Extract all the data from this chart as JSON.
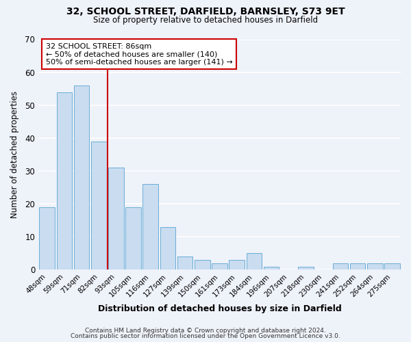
{
  "title": "32, SCHOOL STREET, DARFIELD, BARNSLEY, S73 9ET",
  "subtitle": "Size of property relative to detached houses in Darfield",
  "xlabel": "Distribution of detached houses by size in Darfield",
  "ylabel": "Number of detached properties",
  "bar_labels": [
    "48sqm",
    "59sqm",
    "71sqm",
    "82sqm",
    "93sqm",
    "105sqm",
    "116sqm",
    "127sqm",
    "139sqm",
    "150sqm",
    "161sqm",
    "173sqm",
    "184sqm",
    "196sqm",
    "207sqm",
    "218sqm",
    "230sqm",
    "241sqm",
    "252sqm",
    "264sqm",
    "275sqm"
  ],
  "bar_values": [
    19,
    54,
    56,
    39,
    31,
    19,
    26,
    13,
    4,
    3,
    2,
    3,
    5,
    1,
    0,
    1,
    0,
    2,
    2,
    2,
    2
  ],
  "bar_color": "#c9dcf0",
  "bar_edge_color": "#6aaed6",
  "vline_color": "#cc0000",
  "annotation_text": "32 SCHOOL STREET: 86sqm\n← 50% of detached houses are smaller (140)\n50% of semi-detached houses are larger (141) →",
  "annotation_box_color": "#ffffff",
  "annotation_box_edge": "#cc0000",
  "ylim": [
    0,
    70
  ],
  "yticks": [
    0,
    10,
    20,
    30,
    40,
    50,
    60,
    70
  ],
  "bg_color": "#eef2f9",
  "grid_color": "#ffffff",
  "footer1": "Contains HM Land Registry data © Crown copyright and database right 2024.",
  "footer2": "Contains public sector information licensed under the Open Government Licence v3.0."
}
